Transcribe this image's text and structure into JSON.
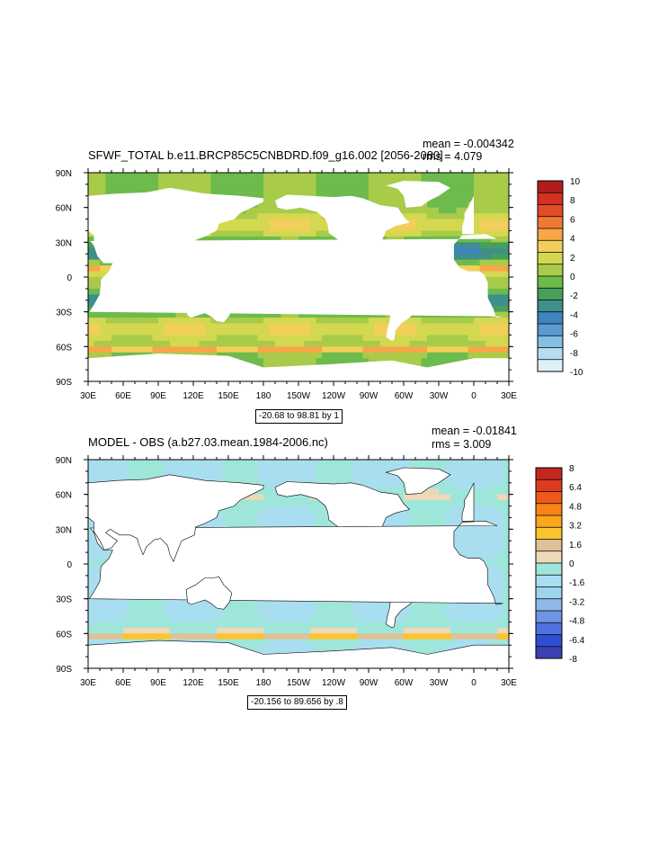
{
  "chart_data": [
    {
      "type": "heatmap",
      "title": "SFWF_TOTAL b.e11.BRCP85C5CNBDRD.f09_g16.002 [2056-2080]",
      "mean_label": "mean = -0.004342",
      "rms_label": "rms = 4.079",
      "range_label": "-20.68 to 98.81 by 1",
      "x_ticks": [
        "30E",
        "60E",
        "90E",
        "120E",
        "150E",
        "180",
        "150W",
        "120W",
        "90W",
        "60W",
        "30W",
        "0",
        "30E"
      ],
      "y_ticks": [
        "90N",
        "60N",
        "30N",
        "0",
        "30S",
        "60S",
        "90S"
      ],
      "colorbar_labels": [
        "10",
        "8",
        "6",
        "4",
        "2",
        "0",
        "-2",
        "-4",
        "-6",
        "-8",
        "-10"
      ],
      "colorbar_colors": [
        "#b11d1d",
        "#d33120",
        "#e24d26",
        "#ef7a33",
        "#f7a648",
        "#f2cf5a",
        "#d4d850",
        "#a8cb4a",
        "#6dbb4c",
        "#47a05a",
        "#3f8f8a",
        "#3f83c0",
        "#5a9ad0",
        "#86bde4",
        "#b6dcef",
        "#dff0f8"
      ]
    },
    {
      "type": "heatmap",
      "title": "MODEL - OBS (a.b27.03.mean.1984-2006.nc)",
      "mean_label": "mean = -0.01841",
      "rms_label": "rms = 3.009",
      "range_label": "-20.156 to 89.656 by .8",
      "x_ticks": [
        "30E",
        "60E",
        "90E",
        "120E",
        "150E",
        "180",
        "150W",
        "120W",
        "90W",
        "60W",
        "30W",
        "0",
        "30E"
      ],
      "y_ticks": [
        "90N",
        "60N",
        "30N",
        "0",
        "30S",
        "60S",
        "90S"
      ],
      "colorbar_labels": [
        "8",
        "6.4",
        "4.8",
        "3.2",
        "1.6",
        "0",
        "-1.6",
        "-3.2",
        "-4.8",
        "-6.4",
        "-8"
      ],
      "colorbar_colors": [
        "#c3271d",
        "#dd3b1f",
        "#ee5a1c",
        "#f68416",
        "#fba61c",
        "#fcc42e",
        "#dfc195",
        "#ecd9b8",
        "#9fe6da",
        "#a9def0",
        "#9ed4ef",
        "#8fb9e8",
        "#6e94e3",
        "#4f72df",
        "#2f4fd3",
        "#3b3fb6"
      ]
    }
  ]
}
